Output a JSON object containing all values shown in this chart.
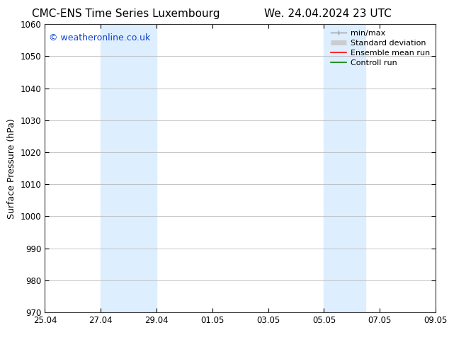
{
  "title_left": "CMC-ENS Time Series Luxembourg",
  "title_right": "We. 24.04.2024 23 UTC",
  "ylabel": "Surface Pressure (hPa)",
  "ylim": [
    970,
    1060
  ],
  "yticks": [
    970,
    980,
    990,
    1000,
    1010,
    1020,
    1030,
    1040,
    1050,
    1060
  ],
  "xticks_labels": [
    "25.04",
    "27.04",
    "29.04",
    "01.05",
    "03.05",
    "05.05",
    "07.05",
    "09.05"
  ],
  "xticks_values": [
    0,
    2,
    4,
    6,
    8,
    10,
    12,
    14
  ],
  "xlim": [
    0,
    14
  ],
  "shaded_regions": [
    {
      "x_start": 2,
      "x_end": 4,
      "color": "#ddeeff"
    },
    {
      "x_start": 10,
      "x_end": 11.5,
      "color": "#ddeeff"
    }
  ],
  "watermark_text": "© weatheronline.co.uk",
  "watermark_color": "#1144cc",
  "legend_items": [
    {
      "label": "min/max",
      "color": "#999999",
      "lw": 1.0
    },
    {
      "label": "Standard deviation",
      "color": "#cccccc",
      "lw": 5
    },
    {
      "label": "Ensemble mean run",
      "color": "red",
      "lw": 1.2
    },
    {
      "label": "Controll run",
      "color": "green",
      "lw": 1.2
    }
  ],
  "bg_color": "#ffffff",
  "plot_bg_color": "#ffffff",
  "grid_color": "#bbbbbb",
  "title_fontsize": 11,
  "ylabel_fontsize": 9,
  "tick_fontsize": 8.5,
  "legend_fontsize": 8,
  "watermark_fontsize": 9
}
